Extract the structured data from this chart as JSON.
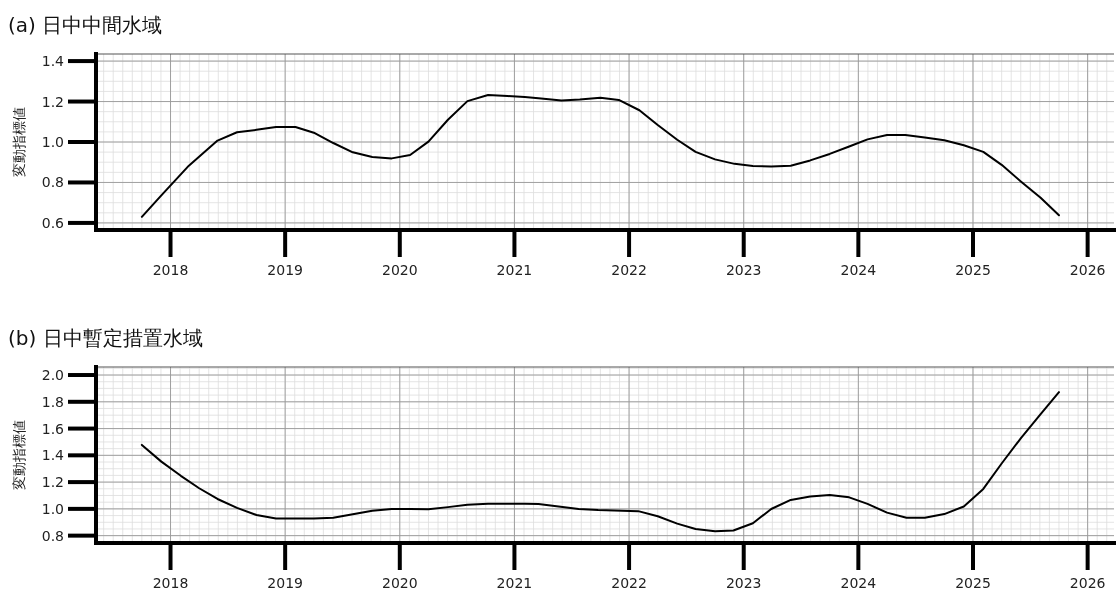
{
  "chart_data": [
    {
      "type": "line",
      "title": "(a) 日中中間水域",
      "ylabel": "変動指標値",
      "xlim": [
        2017.35,
        2026.23
      ],
      "xticks": [
        2018,
        2019,
        2020,
        2021,
        2022,
        2023,
        2024,
        2025,
        2026
      ],
      "ylim": [
        0.565,
        1.435
      ],
      "yticks": [
        {
          "value": 0.6,
          "label": "0.6"
        },
        {
          "value": 0.8,
          "label": "0.8"
        },
        {
          "value": 1.0,
          "label": "1.0"
        },
        {
          "value": 1.2,
          "label": "1.2"
        },
        {
          "value": 1.4,
          "label": "1.4"
        }
      ],
      "grid": true,
      "series": [
        {
          "color": "#000000",
          "x": [
            2017.75,
            2017.92,
            2018.16,
            2018.41,
            2018.58,
            2018.75,
            2018.92,
            2019.09,
            2019.25,
            2019.42,
            2019.59,
            2019.76,
            2019.93,
            2020.09,
            2020.25,
            2020.42,
            2020.59,
            2020.77,
            2020.94,
            2021.09,
            2021.21,
            2021.41,
            2021.57,
            2021.75,
            2021.91,
            2022.09,
            2022.25,
            2022.42,
            2022.58,
            2022.75,
            2022.92,
            2023.08,
            2023.24,
            2023.41,
            2023.58,
            2023.75,
            2023.92,
            2024.08,
            2024.25,
            2024.41,
            2024.58,
            2024.75,
            2024.92,
            2025.09,
            2025.25,
            2025.42,
            2025.59,
            2025.75
          ],
          "values": [
            0.63,
            0.736,
            0.883,
            1.007,
            1.048,
            1.06,
            1.074,
            1.074,
            1.046,
            0.995,
            0.949,
            0.926,
            0.919,
            0.936,
            1.002,
            1.11,
            1.202,
            1.232,
            1.227,
            1.223,
            1.216,
            1.205,
            1.21,
            1.219,
            1.208,
            1.157,
            1.084,
            1.011,
            0.951,
            0.914,
            0.892,
            0.881,
            0.879,
            0.883,
            0.909,
            0.941,
            0.978,
            1.013,
            1.035,
            1.035,
            1.022,
            1.009,
            0.984,
            0.951,
            0.887,
            0.804,
            0.724,
            0.638
          ]
        }
      ]
    },
    {
      "type": "line",
      "title": "(b) 日中暫定措置水域",
      "ylabel": "変動指標値",
      "xlim": [
        2017.35,
        2026.23
      ],
      "xticks": [
        2018,
        2019,
        2020,
        2021,
        2022,
        2023,
        2024,
        2025,
        2026
      ],
      "ylim": [
        0.745,
        2.06
      ],
      "yticks": [
        {
          "value": 0.8,
          "label": "0.8"
        },
        {
          "value": 1.0,
          "label": "1.0"
        },
        {
          "value": 1.2,
          "label": "1.2"
        },
        {
          "value": 1.4,
          "label": "1.4"
        },
        {
          "value": 1.6,
          "label": "1.6"
        },
        {
          "value": 1.8,
          "label": "1.8"
        },
        {
          "value": 2.0,
          "label": "2.0"
        }
      ],
      "grid": true,
      "series": [
        {
          "color": "#000000",
          "x": [
            2017.75,
            2017.92,
            2018.09,
            2018.25,
            2018.41,
            2018.58,
            2018.75,
            2018.92,
            2019.25,
            2019.42,
            2019.59,
            2019.76,
            2019.93,
            2020.09,
            2020.25,
            2020.42,
            2020.59,
            2020.77,
            2021.09,
            2021.21,
            2021.56,
            2021.73,
            2022.08,
            2022.25,
            2022.42,
            2022.58,
            2022.75,
            2022.91,
            2023.08,
            2023.24,
            2023.41,
            2023.58,
            2023.75,
            2023.92,
            2024.08,
            2024.25,
            2024.42,
            2024.58,
            2024.75,
            2024.92,
            2025.09,
            2025.25,
            2025.42,
            2025.59,
            2025.75
          ],
          "values": [
            1.478,
            1.353,
            1.247,
            1.154,
            1.074,
            1.007,
            0.954,
            0.928,
            0.928,
            0.933,
            0.96,
            0.986,
            0.999,
            0.999,
            0.997,
            1.013,
            1.031,
            1.039,
            1.039,
            1.037,
            0.999,
            0.991,
            0.983,
            0.945,
            0.89,
            0.849,
            0.833,
            0.838,
            0.893,
            0.999,
            1.067,
            1.092,
            1.103,
            1.086,
            1.037,
            0.972,
            0.934,
            0.934,
            0.961,
            1.018,
            1.149,
            1.339,
            1.531,
            1.708,
            1.872
          ]
        }
      ]
    }
  ]
}
